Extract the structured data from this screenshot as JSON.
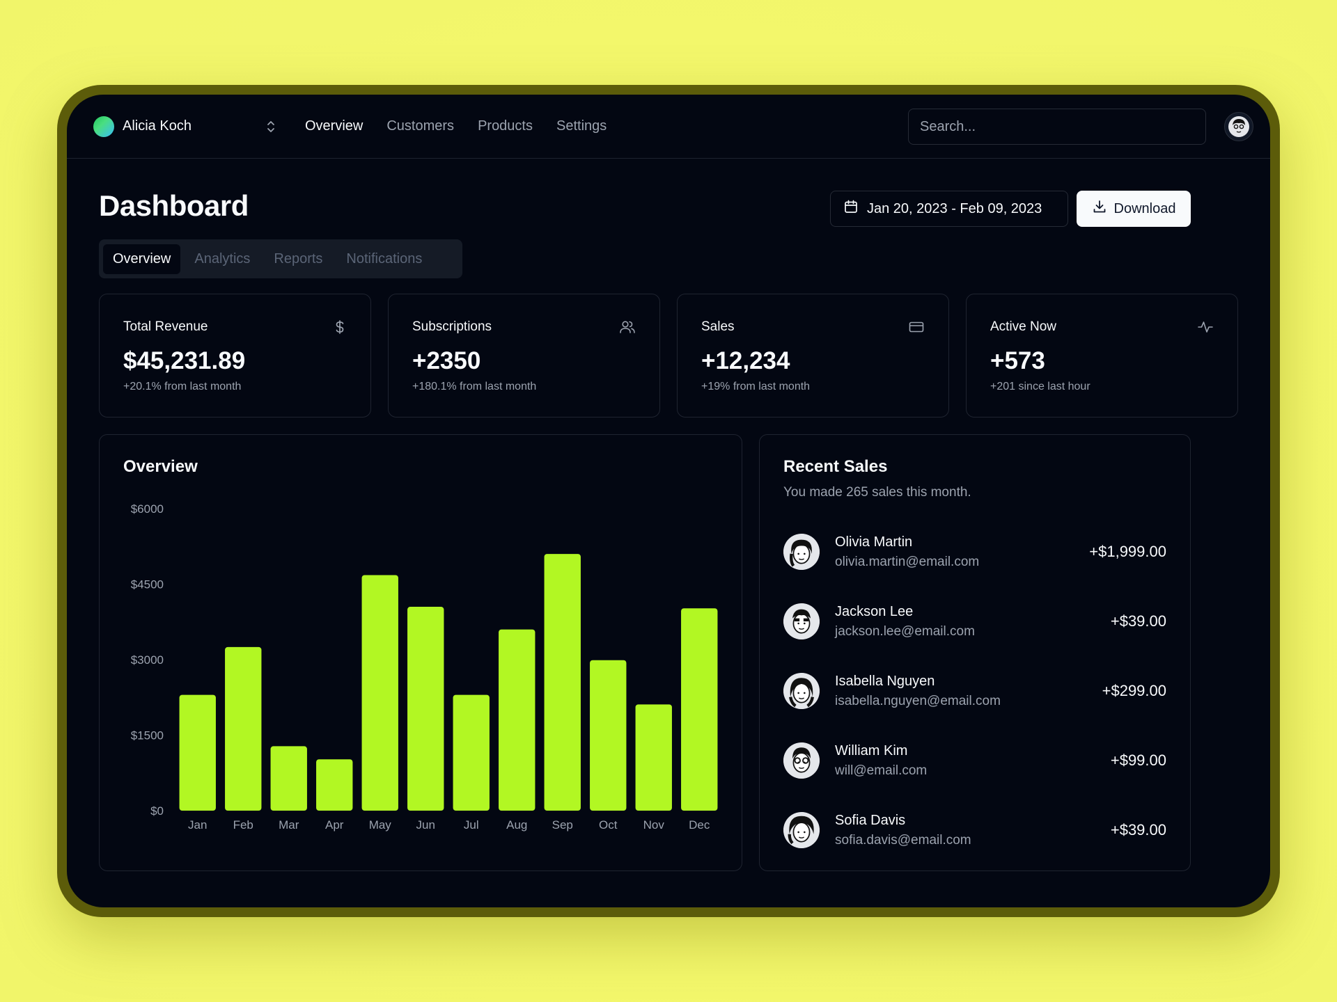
{
  "team": {
    "name": "Alicia Koch",
    "switcher_icon": "chevron-up-down-icon"
  },
  "nav": {
    "links": [
      "Overview",
      "Customers",
      "Products",
      "Settings"
    ],
    "active": "Overview"
  },
  "search": {
    "placeholder": "Search..."
  },
  "page": {
    "title": "Dashboard"
  },
  "date_range": {
    "label": "Jan 20, 2023 - Feb 09, 2023",
    "icon": "calendar-icon"
  },
  "download": {
    "label": "Download",
    "icon": "download-icon"
  },
  "tabs": [
    "Overview",
    "Analytics",
    "Reports",
    "Notifications"
  ],
  "stats": [
    {
      "label": "Total Revenue",
      "value": "$45,231.89",
      "sub": "+20.1% from last month",
      "icon": "dollar-icon"
    },
    {
      "label": "Subscriptions",
      "value": "+2350",
      "sub": "+180.1% from last month",
      "icon": "users-icon"
    },
    {
      "label": "Sales",
      "value": "+12,234",
      "sub": "+19% from last month",
      "icon": "credit-card-icon"
    },
    {
      "label": "Active Now",
      "value": "+573",
      "sub": "+201 since last hour",
      "icon": "activity-icon"
    }
  ],
  "overview": {
    "title": "Overview"
  },
  "chart_data": {
    "type": "bar",
    "categories": [
      "Jan",
      "Feb",
      "Mar",
      "Apr",
      "May",
      "Jun",
      "Jul",
      "Aug",
      "Sep",
      "Oct",
      "Nov",
      "Dec"
    ],
    "values": [
      2300,
      3250,
      1280,
      1020,
      4680,
      4050,
      2300,
      3600,
      5100,
      2990,
      2110,
      4020
    ],
    "ytick_labels": [
      "$0",
      "$1500",
      "$3000",
      "$4500",
      "$6000"
    ],
    "ylim": [
      0,
      6000
    ],
    "bar_color": "#b2f723",
    "grid": false,
    "xlabel": "",
    "ylabel": ""
  },
  "recent_sales": {
    "title": "Recent Sales",
    "subtitle": "You made 265 sales this month.",
    "items": [
      {
        "name": "Olivia Martin",
        "email": "olivia.martin@email.com",
        "amount": "+$1,999.00"
      },
      {
        "name": "Jackson Lee",
        "email": "jackson.lee@email.com",
        "amount": "+$39.00"
      },
      {
        "name": "Isabella Nguyen",
        "email": "isabella.nguyen@email.com",
        "amount": "+$299.00"
      },
      {
        "name": "William Kim",
        "email": "will@email.com",
        "amount": "+$99.00"
      },
      {
        "name": "Sofia Davis",
        "email": "sofia.davis@email.com",
        "amount": "+$39.00"
      }
    ]
  },
  "colors": {
    "accent": "#b2f723",
    "background": "#030712",
    "frame": "#5c5c0a"
  }
}
